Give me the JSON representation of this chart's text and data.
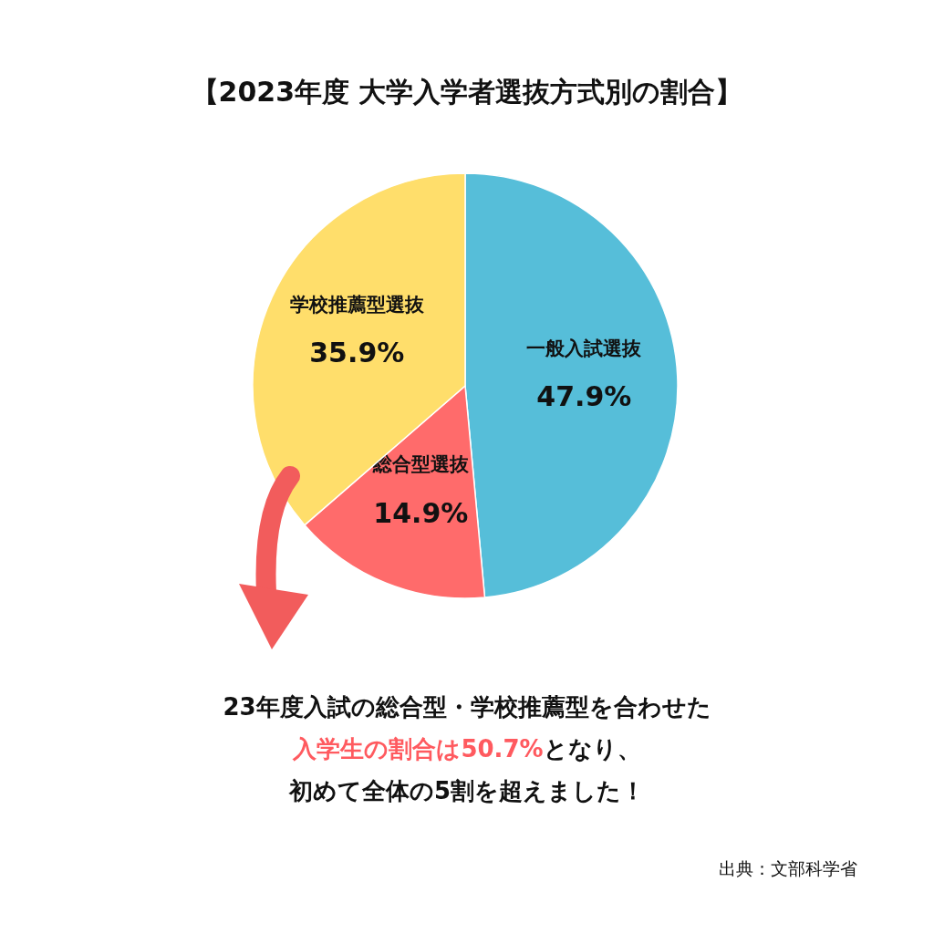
{
  "chart_data": {
    "type": "pie",
    "title": "【2023年度 大学入学者選抜方式別の割合】",
    "categories": [
      "一般入試選抜",
      "総合型選抜",
      "学校推薦型選抜"
    ],
    "values": [
      47.9,
      14.9,
      35.9
    ],
    "colors": [
      "#56bed9",
      "#ff6b6b",
      "#ffde6b"
    ],
    "value_labels": [
      "47.9%",
      "14.9%",
      "35.9%"
    ],
    "annotations": [
      "23年度入試の総合型・学校推薦型を合わせた",
      "入学生の割合は50.7%",
      "となり、",
      "初めて全体の5割を超えました！",
      "出典：文部科学省"
    ]
  }
}
